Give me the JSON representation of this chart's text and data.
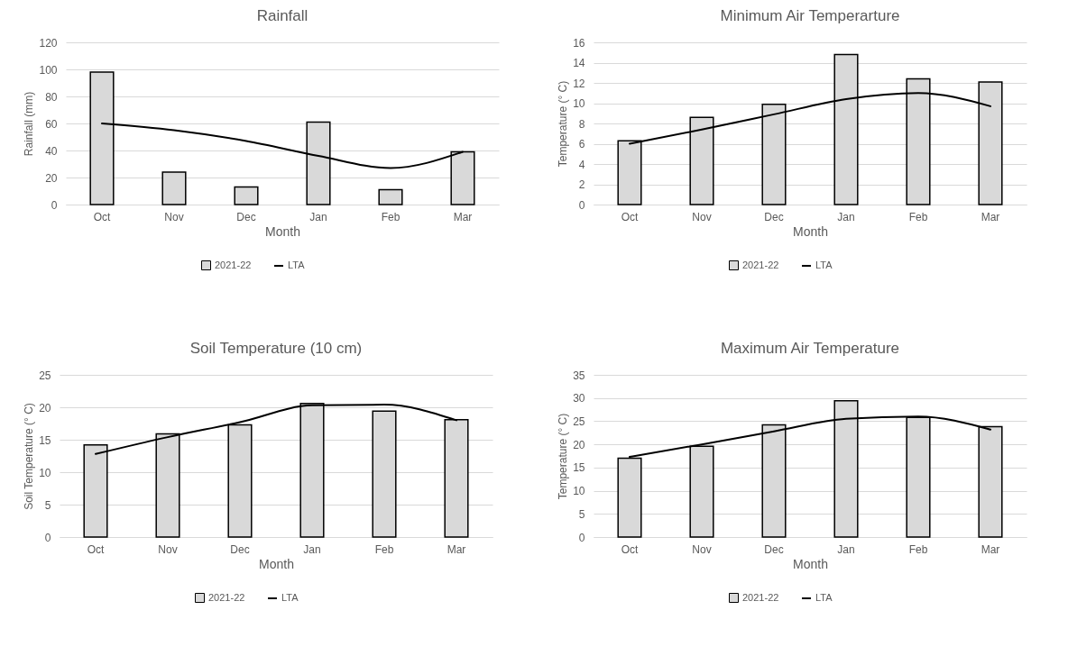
{
  "chart_data": [
    {
      "type": "bar",
      "title": "Rainfall",
      "xlabel": "Month",
      "ylabel": "Rainfall (mm)",
      "categories": [
        "Oct",
        "Nov",
        "Dec",
        "Jan",
        "Feb",
        "Mar"
      ],
      "series": [
        {
          "name": "2021-22",
          "color": "#d9d9d9",
          "values": [
            98,
            24,
            13,
            61,
            11,
            39
          ]
        },
        {
          "name": "LTA",
          "type": "line",
          "color": "#000000",
          "values": [
            60,
            55,
            47,
            36,
            27,
            39
          ]
        }
      ],
      "ylim": [
        0,
        120
      ],
      "yticks": [
        0,
        20,
        40,
        60,
        80,
        100,
        120
      ],
      "grid": "y",
      "legend": "bottom"
    },
    {
      "type": "bar",
      "title": "Minimum Air Temperarture",
      "xlabel": "Month",
      "ylabel": "Temperature (° C)",
      "categories": [
        "Oct",
        "Nov",
        "Dec",
        "Jan",
        "Feb",
        "Mar"
      ],
      "series": [
        {
          "name": "2021-22",
          "color": "#d9d9d9",
          "values": [
            6.3,
            8.6,
            9.9,
            14.8,
            12.4,
            12.1
          ]
        },
        {
          "name": "LTA",
          "type": "line",
          "color": "#000000",
          "values": [
            6.0,
            7.4,
            8.9,
            10.4,
            11.0,
            9.7
          ]
        }
      ],
      "ylim": [
        0,
        16
      ],
      "yticks": [
        0,
        2,
        4,
        6,
        8,
        10,
        12,
        14,
        16
      ],
      "grid": "y",
      "legend": "bottom"
    },
    {
      "type": "bar",
      "title": "Soil Temperature (10 cm)",
      "xlabel": "Month",
      "ylabel": "Soil Temperature (° C)",
      "categories": [
        "Oct",
        "Nov",
        "Dec",
        "Jan",
        "Feb",
        "Mar"
      ],
      "series": [
        {
          "name": "2021-22",
          "color": "#d9d9d9",
          "values": [
            14.2,
            15.9,
            17.3,
            20.6,
            19.4,
            18.1
          ]
        },
        {
          "name": "LTA",
          "type": "line",
          "color": "#000000",
          "values": [
            12.8,
            15.4,
            17.7,
            20.3,
            20.4,
            18.0
          ]
        }
      ],
      "ylim": [
        0,
        25
      ],
      "yticks": [
        0,
        5,
        10,
        15,
        20,
        25
      ],
      "grid": "y",
      "legend": "bottom"
    },
    {
      "type": "bar",
      "title": "Maximum Air Temperature",
      "xlabel": "Month",
      "ylabel": "Temperature (° C)",
      "categories": [
        "Oct",
        "Nov",
        "Dec",
        "Jan",
        "Feb",
        "Mar"
      ],
      "series": [
        {
          "name": "2021-22",
          "color": "#d9d9d9",
          "values": [
            17.0,
            19.6,
            24.2,
            29.4,
            25.8,
            23.8
          ]
        },
        {
          "name": "LTA",
          "type": "line",
          "color": "#000000",
          "values": [
            17.3,
            20.0,
            22.8,
            25.5,
            26.0,
            23.2
          ]
        }
      ],
      "ylim": [
        0,
        35
      ],
      "yticks": [
        0,
        5,
        10,
        15,
        20,
        25,
        30,
        35
      ],
      "grid": "y",
      "legend": "bottom"
    }
  ]
}
